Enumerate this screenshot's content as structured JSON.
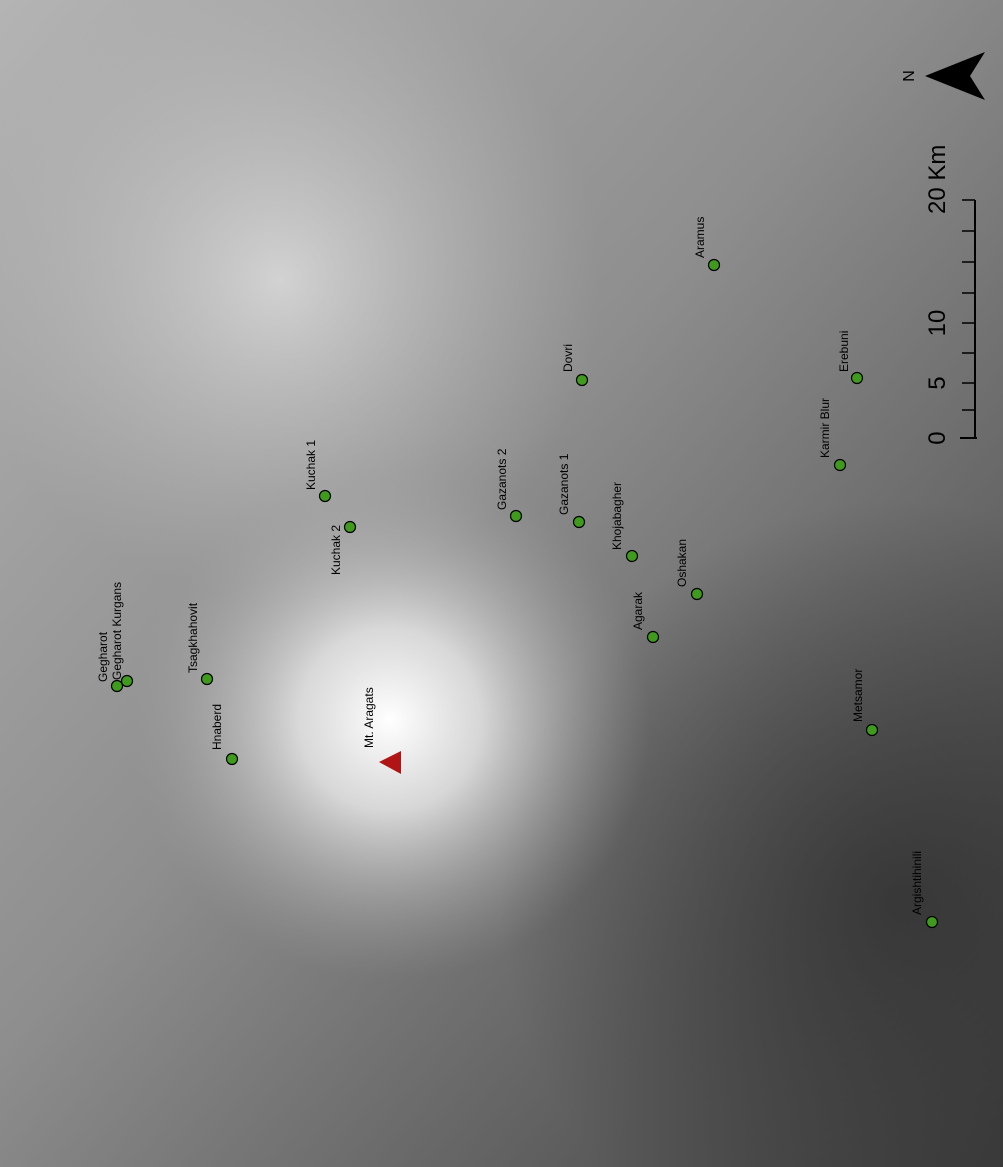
{
  "map": {
    "peak": "Mt. Aragats",
    "sites": [
      "Gegharot",
      "Gegharot Kurgans",
      "Tsagkhahovit",
      "Hnaberd",
      "Kuchak 1",
      "Kuchak 2",
      "Gazanots 2",
      "Gazanots 1",
      "Dovri",
      "Khojabagher",
      "Oshakan",
      "Agarak",
      "Aramus",
      "Karmir Blur",
      "Erebuni",
      "Metsamor",
      "Argishtihinili"
    ],
    "scale_labels": [
      "0",
      "5",
      "10",
      "20 Km"
    ],
    "north": "N"
  }
}
